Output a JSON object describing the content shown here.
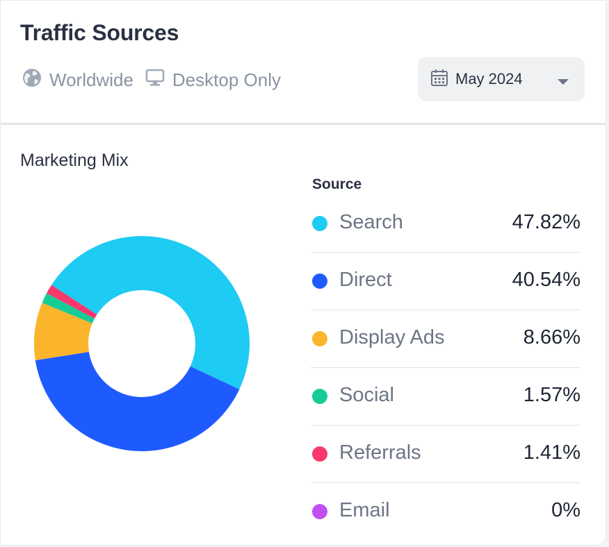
{
  "header": {
    "title": "Traffic Sources",
    "region": "Worldwide",
    "device": "Desktop Only",
    "date": "May 2024"
  },
  "section": {
    "title": "Marketing Mix",
    "legend_header": "Source"
  },
  "sources": [
    {
      "label": "Search",
      "value": "47.82%",
      "color": "#1ecbf2"
    },
    {
      "label": "Direct",
      "value": "40.54%",
      "color": "#1e5bff"
    },
    {
      "label": "Display Ads",
      "value": "8.66%",
      "color": "#fbb52c"
    },
    {
      "label": "Social",
      "value": "1.57%",
      "color": "#16cc96"
    },
    {
      "label": "Referrals",
      "value": "1.41%",
      "color": "#f8386d"
    },
    {
      "label": "Email",
      "value": "0%",
      "color": "#c04ff0"
    }
  ],
  "chart_data": {
    "type": "pie",
    "categories": [
      "Search",
      "Direct",
      "Display Ads",
      "Social",
      "Referrals",
      "Email"
    ],
    "values": [
      47.82,
      40.54,
      8.66,
      1.57,
      1.41,
      0
    ],
    "colors": [
      "#1ecbf2",
      "#1e5bff",
      "#fbb52c",
      "#16cc96",
      "#f8386d",
      "#c04ff0"
    ]
  }
}
